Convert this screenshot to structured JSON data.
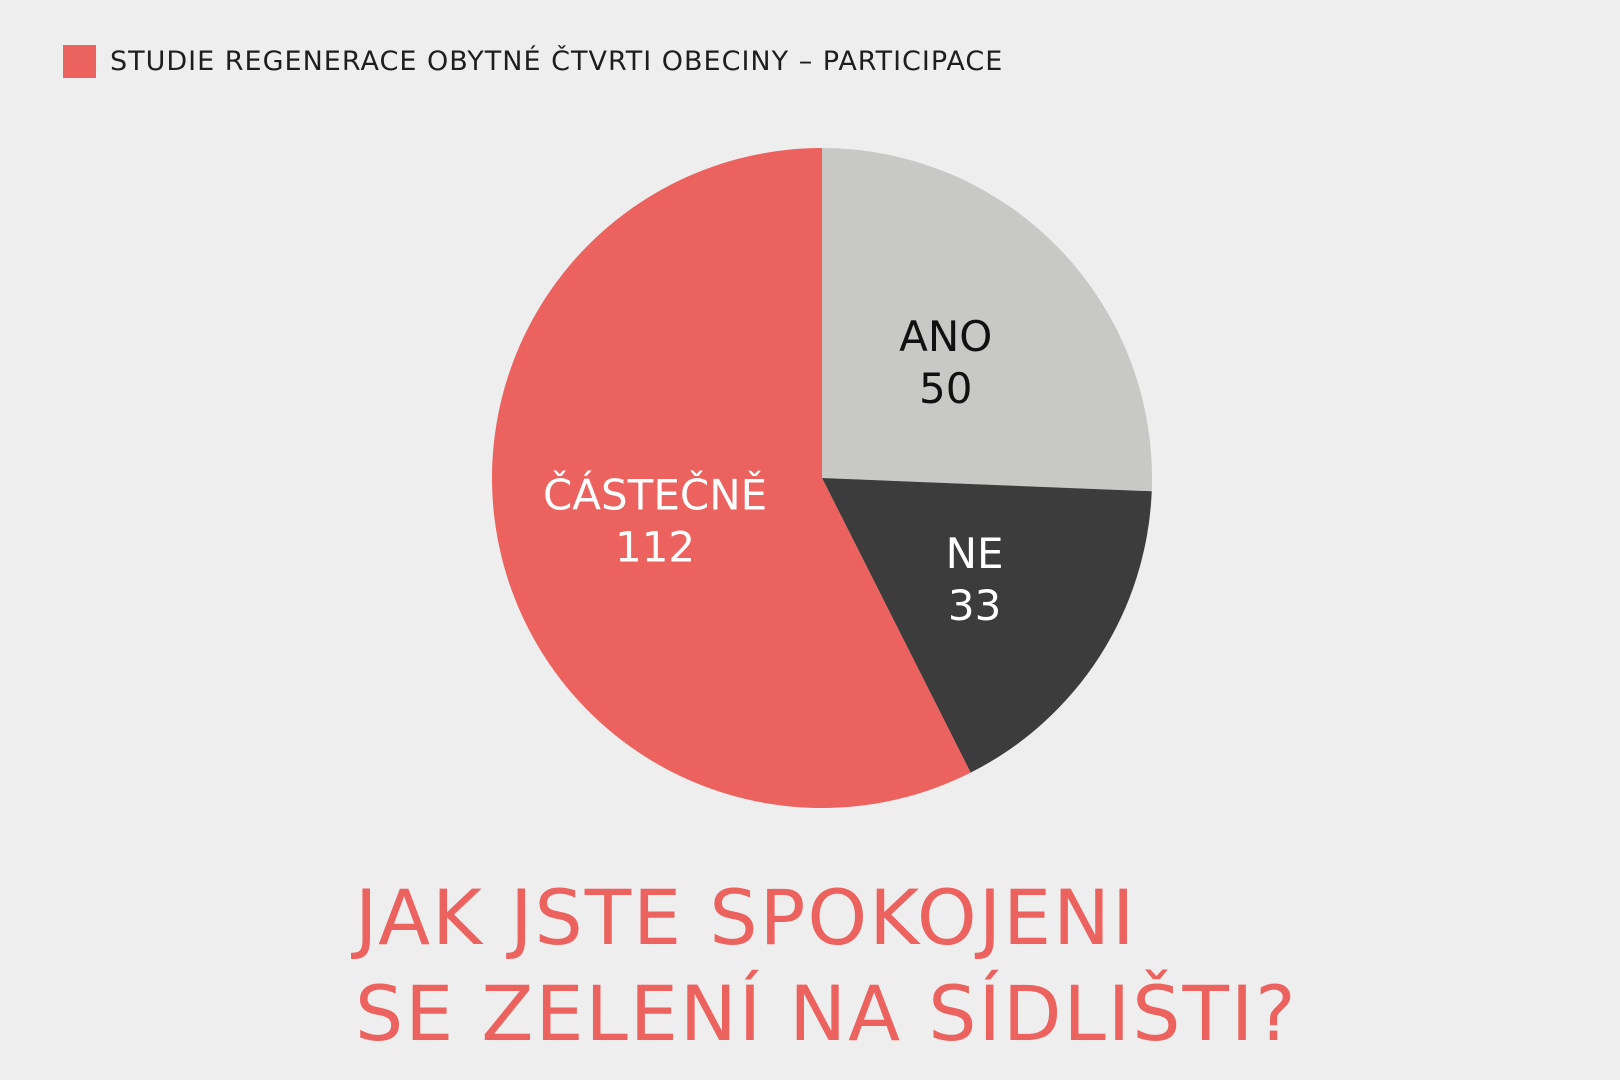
{
  "header": {
    "text": "STUDIE REGENERACE OBYTNÉ ČTVRTI OBECINY – PARTICIPACE",
    "mark_color": "#ec625e"
  },
  "question": {
    "line1": "JAK JSTE SPOKOJENI",
    "line2": "SE ZELENÍ NA SÍDLIŠTI?",
    "color": "#ec625e"
  },
  "chart_data": {
    "type": "pie",
    "slices": [
      {
        "label": "ANO",
        "value": 50,
        "color": "#c8c8c6",
        "text_color": "#111111"
      },
      {
        "label": "NE",
        "value": 33,
        "color": "#3c3c3c",
        "text_color": "#ffffff"
      },
      {
        "label": "ČÁSTEČNĚ",
        "value": 112,
        "color": "#ec625e",
        "text_color": "#ffffff"
      }
    ]
  }
}
